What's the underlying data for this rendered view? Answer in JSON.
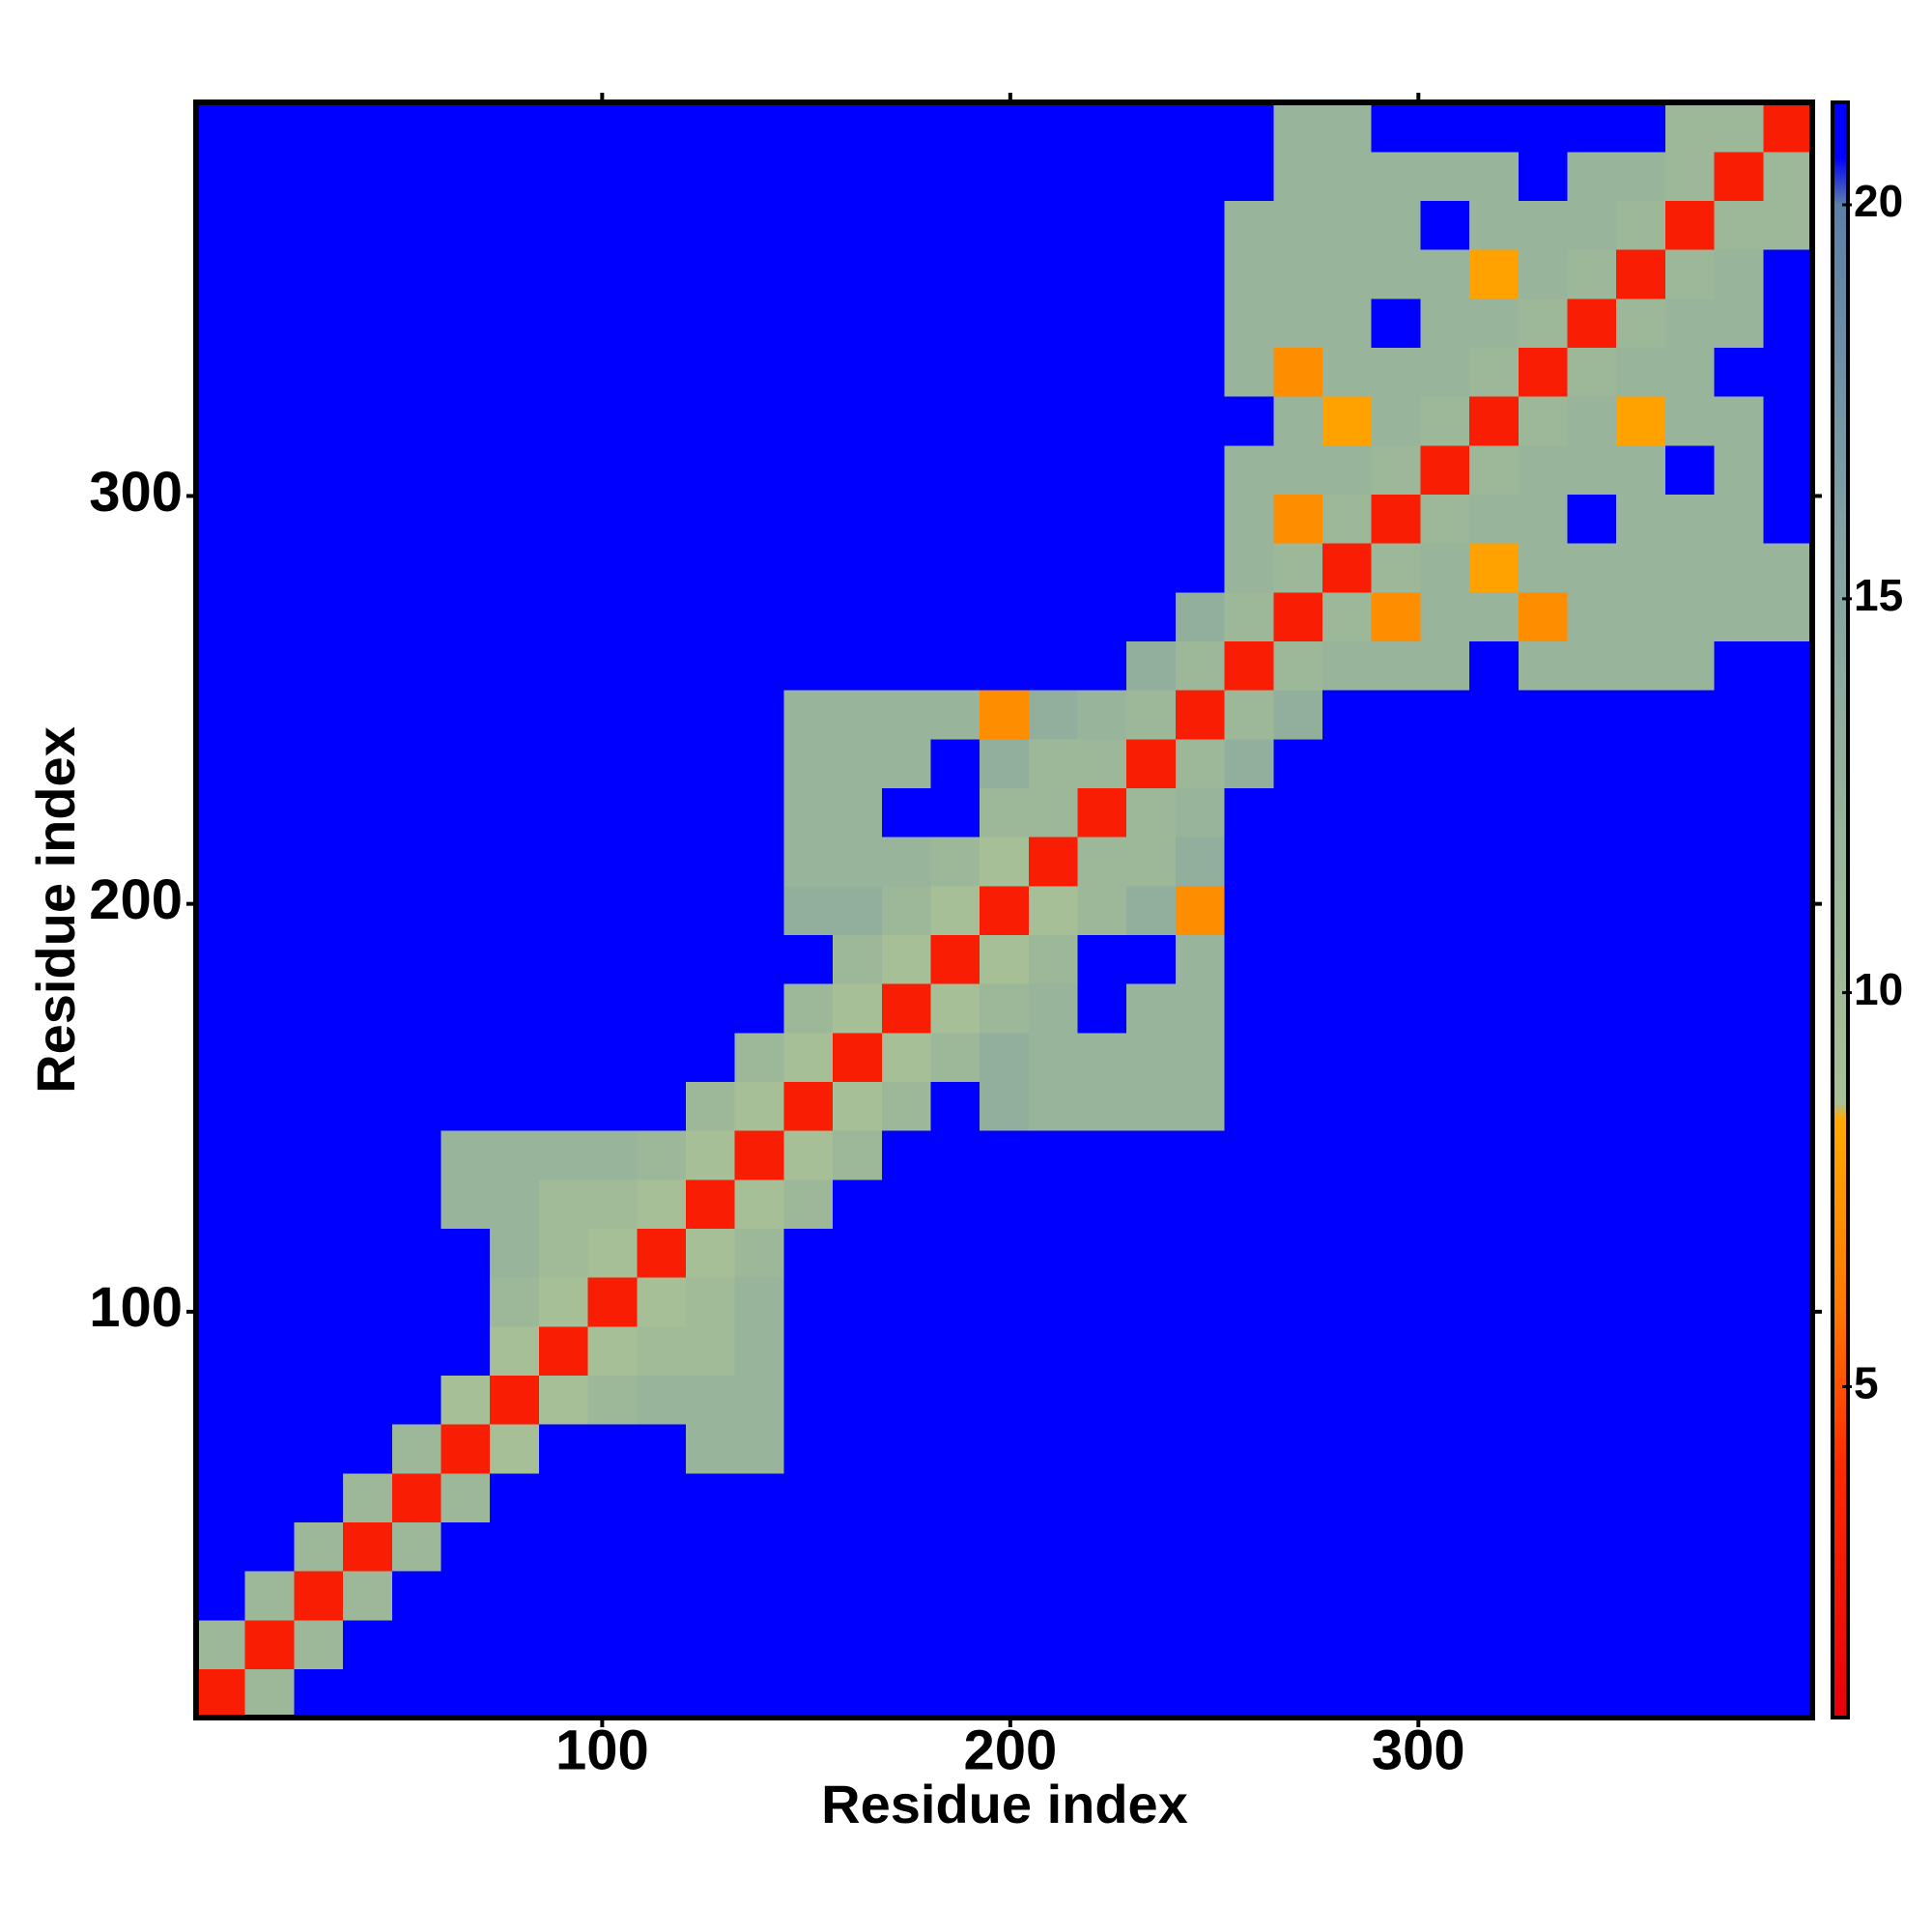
{
  "chart_data": {
    "type": "heatmap",
    "x_label": "Residue index",
    "y_label": "Residue index",
    "xbins": [
      0.5,
      12.5,
      24.5,
      36.5,
      48.5,
      60.5,
      72.5,
      84.5,
      96.5,
      108.5,
      120.5,
      132.5,
      144.5,
      156.5,
      168.5,
      180.5,
      192.5,
      204.5,
      216.5,
      228.5,
      240.5,
      252.5,
      264.5,
      276.5,
      288.5,
      300.5,
      312.5,
      324.5,
      336.5,
      348.5,
      360.5,
      372.5,
      384.5,
      396.5
    ],
    "ybins": [
      0.5,
      12.5,
      24.5,
      36.5,
      48.5,
      60.5,
      72.5,
      84.5,
      96.5,
      108.5,
      120.5,
      132.5,
      144.5,
      156.5,
      168.5,
      180.5,
      192.5,
      204.5,
      216.5,
      228.5,
      240.5,
      252.5,
      264.5,
      276.5,
      288.5,
      300.5,
      312.5,
      324.5,
      336.5,
      348.5,
      360.5,
      372.5,
      384.5,
      396.5
    ],
    "xlim": [
      0.5,
      396.5
    ],
    "ylim": [
      0.5,
      396.5
    ],
    "xticks": [
      100,
      200,
      300
    ],
    "yticks": [
      100,
      200,
      300
    ],
    "zlim": [
      0.8,
      21.3
    ],
    "zticks": [
      5,
      10,
      15,
      20
    ],
    "colorscale": [
      [
        0.8,
        "#e8000a"
      ],
      [
        4,
        "#ff2a00"
      ],
      [
        6,
        "#ff7800"
      ],
      [
        8.4,
        "#ffaa00"
      ],
      [
        8.6,
        "#a8c096"
      ],
      [
        12,
        "#98b49a"
      ],
      [
        16,
        "#80a0a4"
      ],
      [
        20,
        "#5d7fa6"
      ],
      [
        20.6,
        "#0000ff"
      ],
      [
        21.3,
        "#0000ff"
      ]
    ],
    "z": [
      [
        3,
        11,
        21,
        21,
        21,
        21,
        21,
        21,
        21,
        21,
        21,
        21,
        21,
        21,
        21,
        21,
        21,
        21,
        21,
        21,
        21,
        21,
        21,
        21,
        21,
        21,
        21,
        21,
        21,
        21,
        21,
        21,
        21
      ],
      [
        11,
        3,
        11,
        21,
        21,
        21,
        21,
        21,
        21,
        21,
        21,
        21,
        21,
        21,
        21,
        21,
        21,
        21,
        21,
        21,
        21,
        21,
        21,
        21,
        21,
        21,
        21,
        21,
        21,
        21,
        21,
        21,
        21
      ],
      [
        21,
        11,
        3,
        11,
        21,
        21,
        21,
        21,
        21,
        21,
        21,
        21,
        21,
        21,
        21,
        21,
        21,
        21,
        21,
        21,
        21,
        21,
        21,
        21,
        21,
        21,
        21,
        21,
        21,
        21,
        21,
        21,
        21
      ],
      [
        21,
        21,
        11,
        3,
        11,
        21,
        21,
        21,
        21,
        21,
        21,
        21,
        21,
        21,
        21,
        21,
        21,
        21,
        21,
        21,
        21,
        21,
        21,
        21,
        21,
        21,
        21,
        21,
        21,
        21,
        21,
        21,
        21
      ],
      [
        21,
        21,
        21,
        11,
        3,
        11,
        21,
        21,
        21,
        21,
        21,
        21,
        21,
        21,
        21,
        21,
        21,
        21,
        21,
        21,
        21,
        21,
        21,
        21,
        21,
        21,
        21,
        21,
        21,
        21,
        21,
        21,
        21
      ],
      [
        21,
        21,
        21,
        21,
        11,
        3,
        9,
        21,
        21,
        21,
        12,
        12,
        21,
        21,
        21,
        21,
        21,
        21,
        21,
        21,
        21,
        21,
        21,
        21,
        21,
        21,
        21,
        21,
        21,
        21,
        21,
        21,
        21
      ],
      [
        21,
        21,
        21,
        21,
        21,
        9,
        3,
        9,
        11,
        12,
        12,
        12,
        21,
        21,
        21,
        21,
        21,
        21,
        21,
        21,
        21,
        21,
        21,
        21,
        21,
        21,
        21,
        21,
        21,
        21,
        21,
        21,
        21
      ],
      [
        21,
        21,
        21,
        21,
        21,
        21,
        9,
        3,
        9,
        10,
        10,
        12,
        21,
        21,
        21,
        21,
        21,
        21,
        21,
        21,
        21,
        21,
        21,
        21,
        21,
        21,
        21,
        21,
        21,
        21,
        21,
        21,
        21
      ],
      [
        21,
        21,
        21,
        21,
        21,
        21,
        11,
        9,
        3,
        9,
        10,
        12,
        21,
        21,
        21,
        21,
        21,
        21,
        21,
        21,
        21,
        21,
        21,
        21,
        21,
        21,
        21,
        21,
        21,
        21,
        21,
        21,
        21
      ],
      [
        21,
        21,
        21,
        21,
        21,
        21,
        12,
        10,
        9,
        3,
        9,
        11,
        21,
        21,
        21,
        21,
        21,
        21,
        21,
        21,
        21,
        21,
        21,
        21,
        21,
        21,
        21,
        21,
        21,
        21,
        21,
        21,
        21
      ],
      [
        21,
        21,
        21,
        21,
        21,
        12,
        12,
        10,
        10,
        9,
        3,
        9,
        11,
        21,
        21,
        21,
        21,
        21,
        21,
        21,
        21,
        21,
        21,
        21,
        21,
        21,
        21,
        21,
        21,
        21,
        21,
        21,
        21
      ],
      [
        21,
        21,
        21,
        21,
        21,
        12,
        12,
        12,
        12,
        11,
        9,
        3,
        9,
        11,
        21,
        21,
        21,
        21,
        21,
        21,
        21,
        21,
        21,
        21,
        21,
        21,
        21,
        21,
        21,
        21,
        21,
        21,
        21
      ],
      [
        21,
        21,
        21,
        21,
        21,
        21,
        21,
        21,
        21,
        21,
        11,
        9,
        3,
        9,
        11,
        21,
        13,
        12,
        12,
        12,
        12,
        21,
        21,
        21,
        21,
        21,
        21,
        21,
        21,
        21,
        21,
        21,
        21
      ],
      [
        21,
        21,
        21,
        21,
        21,
        21,
        21,
        21,
        21,
        21,
        21,
        11,
        9,
        3,
        9,
        11,
        13,
        12,
        12,
        12,
        12,
        21,
        21,
        21,
        21,
        21,
        21,
        21,
        21,
        21,
        21,
        21,
        21
      ],
      [
        21,
        21,
        21,
        21,
        21,
        21,
        21,
        21,
        21,
        21,
        21,
        21,
        11,
        9,
        3,
        9,
        11,
        12,
        21,
        12,
        12,
        21,
        21,
        21,
        21,
        21,
        21,
        21,
        21,
        21,
        21,
        21,
        21
      ],
      [
        21,
        21,
        21,
        21,
        21,
        21,
        21,
        21,
        21,
        21,
        21,
        21,
        21,
        11,
        9,
        3,
        9,
        11,
        21,
        21,
        12,
        21,
        21,
        21,
        21,
        21,
        21,
        21,
        21,
        21,
        21,
        21,
        21
      ],
      [
        21,
        21,
        21,
        21,
        21,
        21,
        21,
        21,
        21,
        21,
        21,
        21,
        13,
        13,
        11,
        9,
        3,
        9,
        11,
        13,
        7,
        21,
        21,
        21,
        21,
        21,
        21,
        21,
        21,
        21,
        21,
        21,
        21
      ],
      [
        21,
        21,
        21,
        21,
        21,
        21,
        21,
        21,
        21,
        21,
        21,
        21,
        12,
        12,
        12,
        11,
        9,
        3,
        11,
        11,
        13,
        21,
        21,
        21,
        21,
        21,
        21,
        21,
        21,
        21,
        21,
        21,
        21
      ],
      [
        21,
        21,
        21,
        21,
        21,
        21,
        21,
        21,
        21,
        21,
        21,
        21,
        12,
        12,
        21,
        21,
        11,
        11,
        3,
        11,
        12,
        21,
        21,
        21,
        21,
        21,
        21,
        21,
        21,
        21,
        21,
        21,
        21
      ],
      [
        21,
        21,
        21,
        21,
        21,
        21,
        21,
        21,
        21,
        21,
        21,
        21,
        12,
        12,
        12,
        21,
        13,
        11,
        11,
        3,
        11,
        13,
        21,
        21,
        21,
        21,
        21,
        21,
        21,
        21,
        21,
        21,
        21
      ],
      [
        21,
        21,
        21,
        21,
        21,
        21,
        21,
        21,
        21,
        21,
        21,
        21,
        12,
        12,
        12,
        12,
        7,
        13,
        12,
        11,
        3,
        11,
        13,
        21,
        21,
        21,
        21,
        21,
        21,
        21,
        21,
        21,
        21
      ],
      [
        21,
        21,
        21,
        21,
        21,
        21,
        21,
        21,
        21,
        21,
        21,
        21,
        21,
        21,
        21,
        21,
        21,
        21,
        21,
        13,
        11,
        3,
        11,
        12,
        12,
        12,
        21,
        12,
        12,
        12,
        12,
        21,
        21
      ],
      [
        21,
        21,
        21,
        21,
        21,
        21,
        21,
        21,
        21,
        21,
        21,
        21,
        21,
        21,
        21,
        21,
        21,
        21,
        21,
        21,
        13,
        11,
        3,
        11,
        7,
        12,
        12,
        7,
        12,
        12,
        12,
        12,
        12
      ],
      [
        21,
        21,
        21,
        21,
        21,
        21,
        21,
        21,
        21,
        21,
        21,
        21,
        21,
        21,
        21,
        21,
        21,
        21,
        21,
        21,
        21,
        12,
        11,
        3,
        11,
        12,
        8,
        12,
        12,
        12,
        12,
        12,
        12
      ],
      [
        21,
        21,
        21,
        21,
        21,
        21,
        21,
        21,
        21,
        21,
        21,
        21,
        21,
        21,
        21,
        21,
        21,
        21,
        21,
        21,
        21,
        12,
        7,
        11,
        3,
        11,
        12,
        12,
        21,
        12,
        12,
        12,
        21
      ],
      [
        21,
        21,
        21,
        21,
        21,
        21,
        21,
        21,
        21,
        21,
        21,
        21,
        21,
        21,
        21,
        21,
        21,
        21,
        21,
        21,
        21,
        12,
        12,
        12,
        11,
        3,
        11,
        12,
        12,
        12,
        21,
        12,
        21
      ],
      [
        21,
        21,
        21,
        21,
        21,
        21,
        21,
        21,
        21,
        21,
        21,
        21,
        21,
        21,
        21,
        21,
        21,
        21,
        21,
        21,
        21,
        21,
        12,
        8,
        12,
        11,
        3,
        11,
        12,
        8,
        12,
        12,
        21
      ],
      [
        21,
        21,
        21,
        21,
        21,
        21,
        21,
        21,
        21,
        21,
        21,
        21,
        21,
        21,
        21,
        21,
        21,
        21,
        21,
        21,
        21,
        12,
        7,
        12,
        12,
        12,
        11,
        3,
        11,
        12,
        12,
        21,
        21
      ],
      [
        21,
        21,
        21,
        21,
        21,
        21,
        21,
        21,
        21,
        21,
        21,
        21,
        21,
        21,
        21,
        21,
        21,
        21,
        21,
        21,
        21,
        12,
        12,
        12,
        21,
        12,
        12,
        11,
        3,
        11,
        12,
        12,
        21
      ],
      [
        21,
        21,
        21,
        21,
        21,
        21,
        21,
        21,
        21,
        21,
        21,
        21,
        21,
        21,
        21,
        21,
        21,
        21,
        21,
        21,
        21,
        12,
        12,
        12,
        12,
        12,
        8,
        12,
        11,
        3,
        11,
        12,
        21
      ],
      [
        21,
        21,
        21,
        21,
        21,
        21,
        21,
        21,
        21,
        21,
        21,
        21,
        21,
        21,
        21,
        21,
        21,
        21,
        21,
        21,
        21,
        12,
        12,
        12,
        12,
        21,
        12,
        12,
        12,
        11,
        3,
        11,
        11
      ],
      [
        21,
        21,
        21,
        21,
        21,
        21,
        21,
        21,
        21,
        21,
        21,
        21,
        21,
        21,
        21,
        21,
        21,
        21,
        21,
        21,
        21,
        21,
        12,
        12,
        12,
        12,
        12,
        21,
        12,
        12,
        11,
        3,
        11
      ],
      [
        21,
        21,
        21,
        21,
        21,
        21,
        21,
        21,
        21,
        21,
        21,
        21,
        21,
        21,
        21,
        21,
        21,
        21,
        21,
        21,
        21,
        21,
        12,
        12,
        21,
        21,
        21,
        21,
        21,
        21,
        11,
        11,
        3
      ]
    ]
  }
}
